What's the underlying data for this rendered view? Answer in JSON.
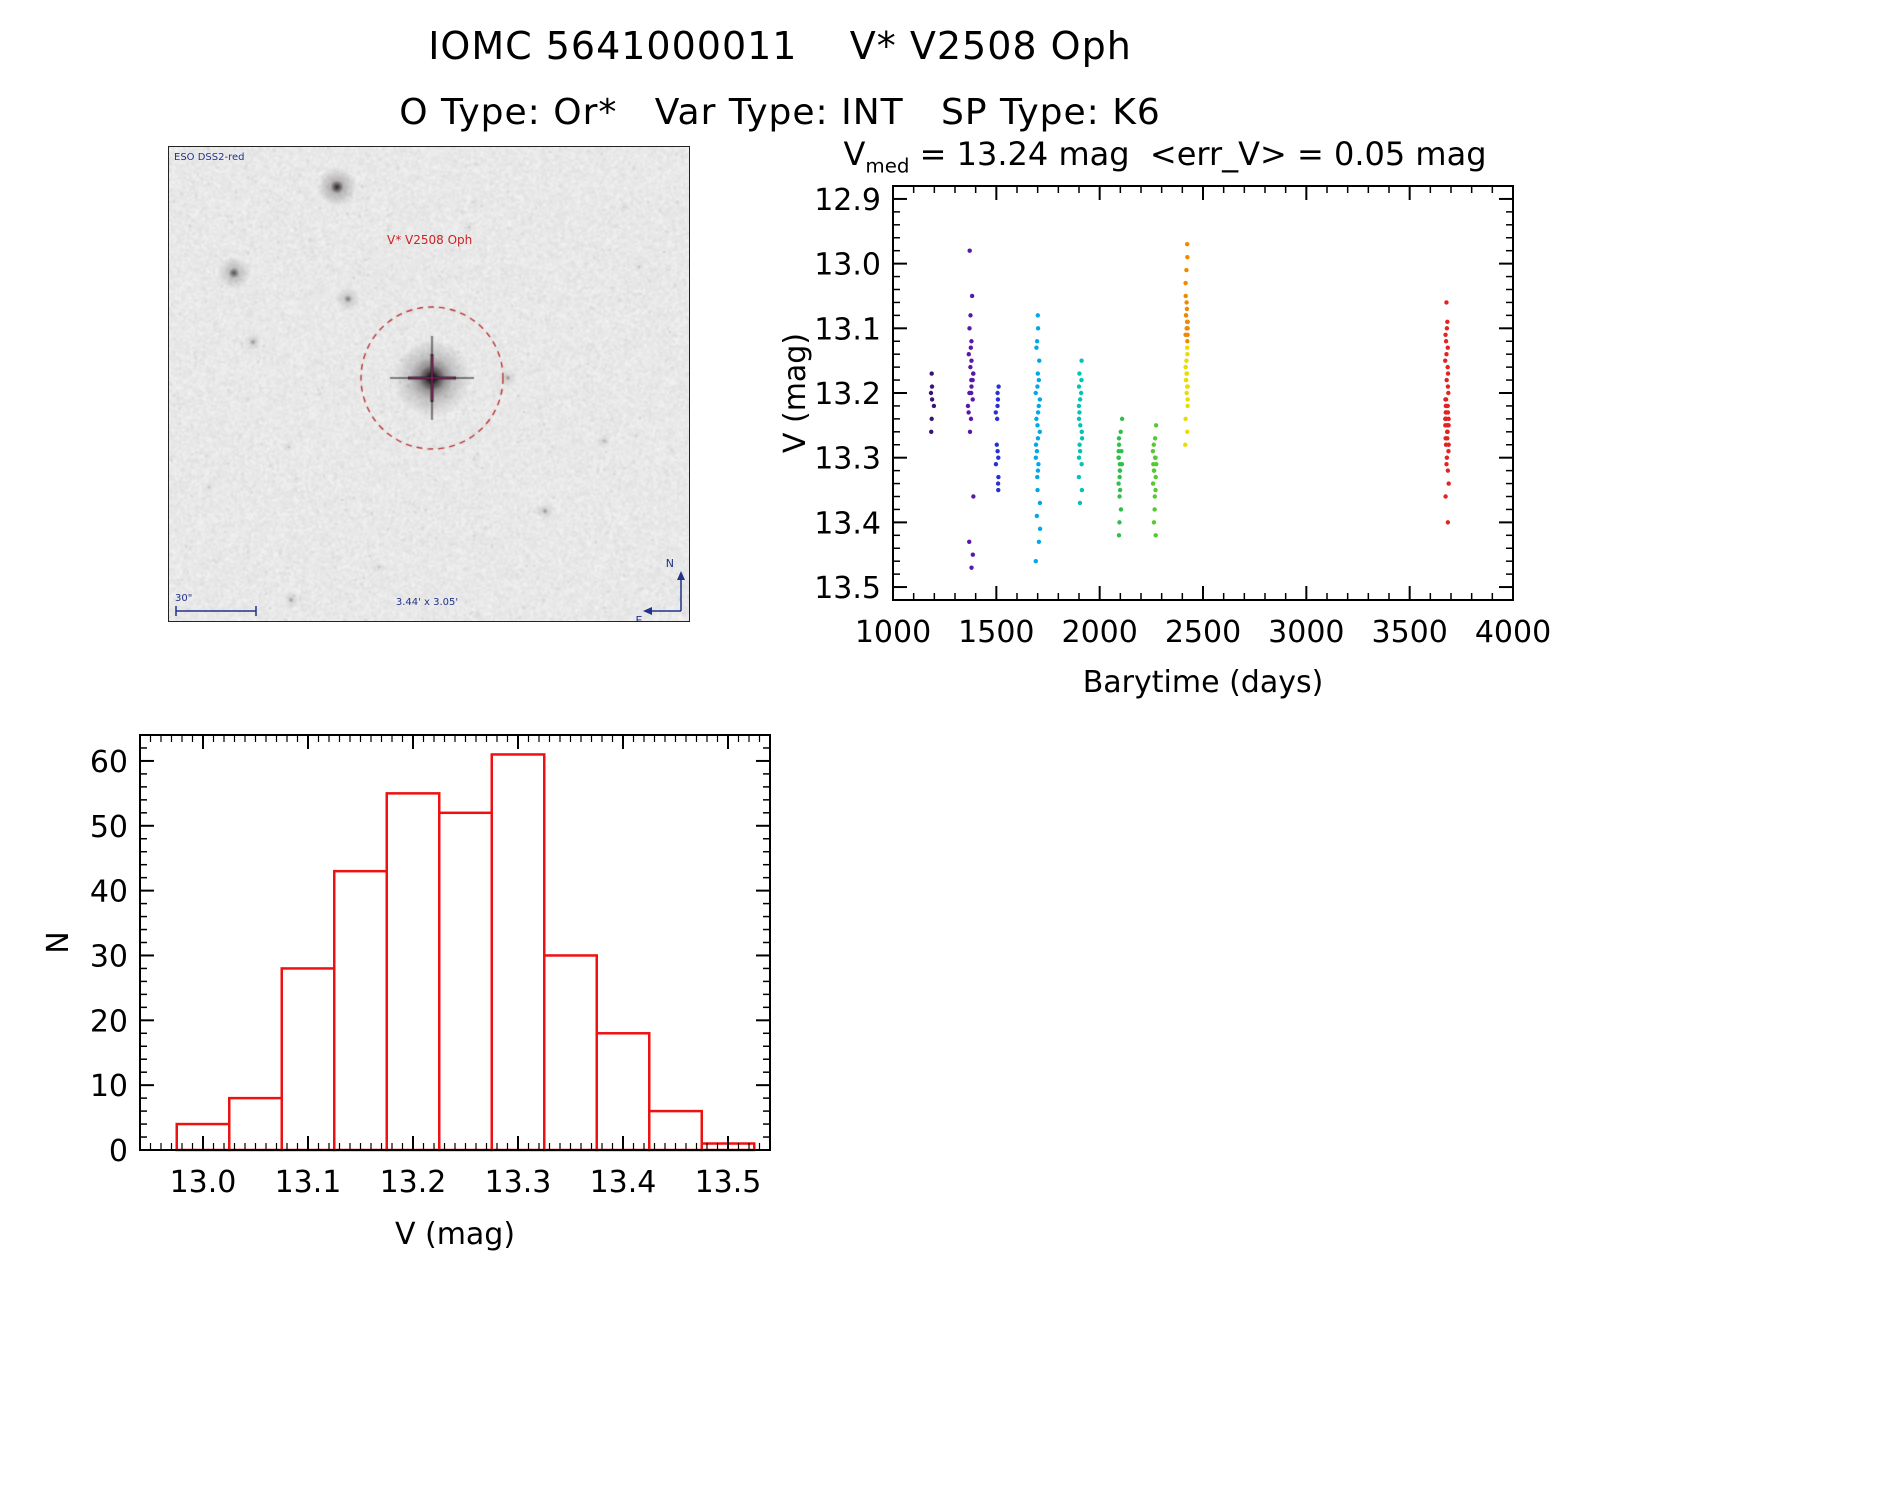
{
  "page": {
    "title": "IOMC 5641000011    V* V2508 Oph",
    "subtitle": "O Type: Or*   Var Type: INT   SP Type: K6"
  },
  "finding_chart": {
    "survey_label": "ESO DSS2-red",
    "target_label": "V* V2508 Oph",
    "scale_label": "30\"",
    "size_label": "3.44' x 3.05'",
    "compass": {
      "north": "N",
      "east": "E"
    },
    "accent_color": "#bb3030",
    "annotation_color": "#223388"
  },
  "chart_data": [
    {
      "type": "scatter",
      "title": {
        "prefix": "V",
        "sub": "med",
        "rest": " = 13.24 mag  <err_V> = 0.05 mag"
      },
      "title_text": "Vmed = 13.24 mag <err_V> = 0.05 mag",
      "xlabel": "Barytime (days)",
      "ylabel": "V (mag)",
      "xlim": [
        1000,
        4000
      ],
      "ylim": [
        12.88,
        13.52
      ],
      "y_inverted": true,
      "xticks": [
        1000,
        1500,
        2000,
        2500,
        3000,
        3500,
        4000
      ],
      "yticks": [
        12.9,
        13.0,
        13.1,
        13.2,
        13.3,
        13.4,
        13.5
      ],
      "x_minor": 100,
      "y_minor": 0.02,
      "grid": false,
      "legend": "none",
      "clusters": [
        {
          "barytime": 1190,
          "color": "#3a1278",
          "jitter": 8,
          "v": [
            13.17,
            13.19,
            13.2,
            13.21,
            13.22,
            13.24,
            13.26
          ]
        },
        {
          "barytime": 1375,
          "color": "#5a18a8",
          "jitter": 14,
          "v": [
            12.98,
            13.05,
            13.08,
            13.1,
            13.12,
            13.13,
            13.14,
            13.15,
            13.16,
            13.17,
            13.17,
            13.18,
            13.18,
            13.19,
            13.2,
            13.2,
            13.21,
            13.22,
            13.23,
            13.24,
            13.26,
            13.36,
            13.43,
            13.45,
            13.47
          ]
        },
        {
          "barytime": 1505,
          "color": "#2830d8",
          "jitter": 8,
          "v": [
            13.19,
            13.2,
            13.21,
            13.22,
            13.23,
            13.24,
            13.28,
            13.29,
            13.3,
            13.31,
            13.33,
            13.34,
            13.35
          ]
        },
        {
          "barytime": 1700,
          "color": "#00a8e8",
          "jitter": 12,
          "v": [
            13.08,
            13.1,
            13.12,
            13.13,
            13.15,
            13.17,
            13.18,
            13.19,
            13.2,
            13.21,
            13.22,
            13.23,
            13.24,
            13.25,
            13.26,
            13.27,
            13.28,
            13.29,
            13.3,
            13.31,
            13.32,
            13.33,
            13.35,
            13.37,
            13.39,
            13.41,
            13.43,
            13.46
          ]
        },
        {
          "barytime": 1905,
          "color": "#00c4b4",
          "jitter": 10,
          "v": [
            13.15,
            13.17,
            13.18,
            13.19,
            13.2,
            13.21,
            13.22,
            13.23,
            13.24,
            13.25,
            13.26,
            13.27,
            13.28,
            13.29,
            13.3,
            13.31,
            13.33,
            13.35,
            13.37
          ]
        },
        {
          "barytime": 2100,
          "color": "#2fbf4a",
          "jitter": 9,
          "v": [
            13.24,
            13.26,
            13.27,
            13.28,
            13.29,
            13.29,
            13.3,
            13.3,
            13.31,
            13.31,
            13.32,
            13.32,
            13.33,
            13.34,
            13.35,
            13.36,
            13.38,
            13.4,
            13.42
          ]
        },
        {
          "barytime": 2265,
          "color": "#55c832",
          "jitter": 9,
          "v": [
            13.25,
            13.27,
            13.28,
            13.29,
            13.3,
            13.3,
            13.31,
            13.31,
            13.32,
            13.32,
            13.33,
            13.34,
            13.35,
            13.36,
            13.38,
            13.4,
            13.42
          ]
        },
        {
          "barytime": 2420,
          "color": "#f08800",
          "jitter": 7,
          "v": [
            12.97,
            12.99,
            13.01,
            13.03,
            13.05,
            13.06,
            13.07,
            13.08,
            13.08,
            13.09,
            13.09,
            13.1,
            13.1,
            13.11,
            13.11,
            13.12
          ]
        },
        {
          "barytime": 2420,
          "color": "#e8dc00",
          "jitter": 7,
          "v": [
            13.13,
            13.14,
            13.15,
            13.16,
            13.16,
            13.17,
            13.17,
            13.18,
            13.18,
            13.19,
            13.19,
            13.2,
            13.21,
            13.22,
            13.24,
            13.26,
            13.28
          ]
        },
        {
          "barytime": 3680,
          "color": "#e42222",
          "jitter": 9,
          "v": [
            13.06,
            13.09,
            13.1,
            13.11,
            13.12,
            13.13,
            13.14,
            13.15,
            13.16,
            13.17,
            13.18,
            13.19,
            13.2,
            13.21,
            13.21,
            13.22,
            13.22,
            13.22,
            13.23,
            13.23,
            13.23,
            13.24,
            13.24,
            13.24,
            13.24,
            13.25,
            13.25,
            13.25,
            13.25,
            13.26,
            13.26,
            13.26,
            13.27,
            13.27,
            13.28,
            13.28,
            13.29,
            13.3,
            13.31,
            13.32,
            13.34,
            13.36,
            13.4
          ]
        }
      ]
    },
    {
      "type": "bar",
      "subtype": "histogram",
      "xlabel": "V (mag)",
      "ylabel": "N",
      "bin_start": 12.975,
      "bin_width": 0.05,
      "counts": [
        4,
        8,
        28,
        43,
        55,
        52,
        61,
        30,
        18,
        6,
        1
      ],
      "xlim": [
        12.94,
        13.54
      ],
      "ylim": [
        0,
        64
      ],
      "xticks": [
        13.0,
        13.1,
        13.2,
        13.3,
        13.4,
        13.5
      ],
      "yticks": [
        0,
        10,
        20,
        30,
        40,
        50,
        60
      ],
      "x_minor": 0.01,
      "y_minor": 2,
      "color": "#ee1111",
      "grid": false
    }
  ]
}
